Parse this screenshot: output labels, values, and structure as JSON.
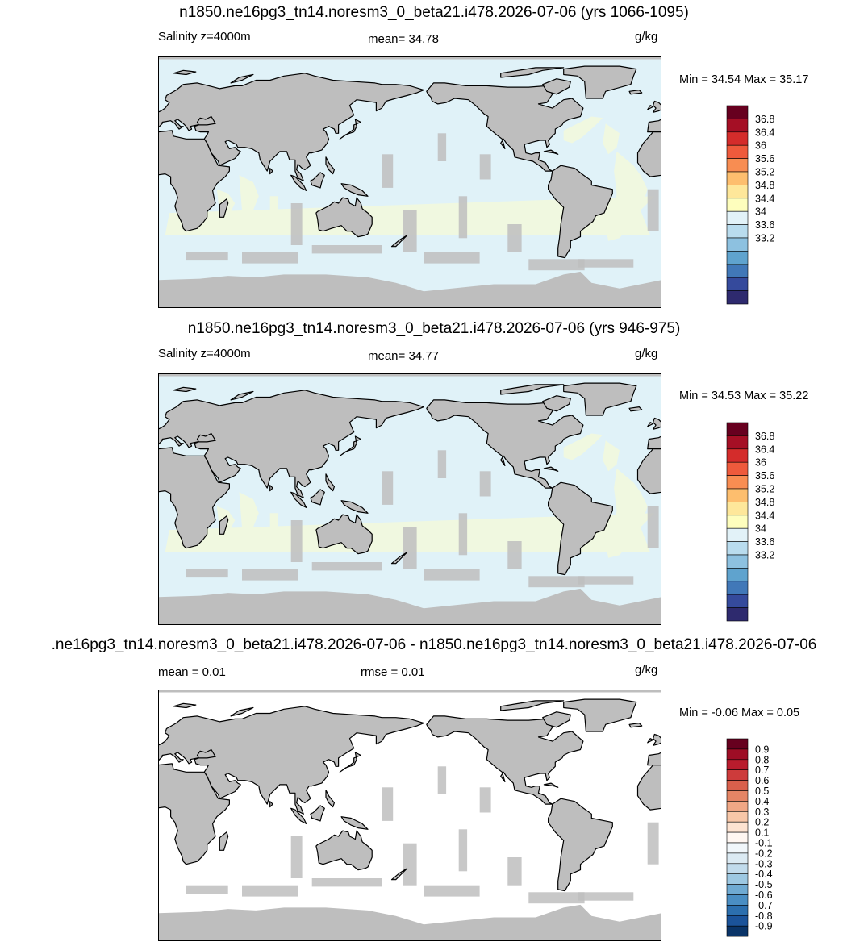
{
  "panels": [
    {
      "title": "n1850.ne16pg3_tn14.noresm3_0_beta21.i478.2026-07-06 (yrs 1066-1095)",
      "left_label": "Salinity z=4000m",
      "center_label": "mean=  34.78",
      "units": "g/kg",
      "minmax": "Min =  34.54 Max =  35.17",
      "ocean_color": "#e0f2f8",
      "saline_color": "#f0f8e0"
    },
    {
      "title": "n1850.ne16pg3_tn14.noresm3_0_beta21.i478.2026-07-06 (yrs 946-975)",
      "left_label": "Salinity z=4000m",
      "center_label": "mean=  34.77",
      "units": "g/kg",
      "minmax": "Min =  34.53 Max =  35.22",
      "ocean_color": "#e0f2f8",
      "saline_color": "#f0f8e0"
    },
    {
      "title": ".ne16pg3_tn14.noresm3_0_beta21.i478.2026-07-06 - n1850.ne16pg3_tn14.noresm3_0_beta21.i478.2026-07-06",
      "left_label": "mean =   0.01",
      "center_label": "rmse =   0.01",
      "units": "g/kg",
      "minmax": "Min =  -0.06 Max =   0.05",
      "ocean_color": "#ffffff",
      "saline_color": "#ffffff"
    }
  ],
  "colorbars": {
    "salinity": {
      "labels": [
        "36.8",
        "36.4",
        "36",
        "35.6",
        "35.2",
        "34.8",
        "34.4",
        "34",
        "33.6",
        "33.2"
      ],
      "colors": [
        "#67001f",
        "#a50f25",
        "#d42c2b",
        "#ee5a3c",
        "#f88d52",
        "#fdbe6e",
        "#fee79a",
        "#fefebd",
        "#e2f2f8",
        "#b9dcee",
        "#8dc1e0",
        "#5fa3ce",
        "#4178b8",
        "#354a9c",
        "#2e2a6e"
      ]
    },
    "difference": {
      "labels": [
        "0.9",
        "0.8",
        "0.7",
        "0.6",
        "0.5",
        "0.4",
        "0.3",
        "0.2",
        "0.1",
        "-0.1",
        "-0.2",
        "-0.3",
        "-0.4",
        "-0.5",
        "-0.6",
        "-0.7",
        "-0.8",
        "-0.9"
      ],
      "colors": [
        "#67001f",
        "#9e0d25",
        "#b91c2d",
        "#cd3b3b",
        "#d9604c",
        "#e58565",
        "#f0a785",
        "#f8c7a8",
        "#fde3d1",
        "#fff7f2",
        "#f1f7fb",
        "#dbeaf3",
        "#c1dbec",
        "#9dc8e2",
        "#6faad2",
        "#4a8ec3",
        "#2c6fae",
        "#1b539a",
        "#0a3468"
      ],
      "title": ""
    }
  },
  "chart_data": [
    {
      "type": "heatmap",
      "title": "n1850.ne16pg3_tn14.noresm3_0_beta21.i478.2026-07-06 (yrs 1066-1095)",
      "variable": "Salinity z=4000m",
      "units": "g/kg",
      "mean": 34.78,
      "min": 34.54,
      "max": 35.17,
      "projection": "cylindrical equidistant, lon 0-360",
      "colorbar_range": [
        33.0,
        37.0
      ],
      "colorbar_step": 0.2
    },
    {
      "type": "heatmap",
      "title": "n1850.ne16pg3_tn14.noresm3_0_beta21.i478.2026-07-06 (yrs 946-975)",
      "variable": "Salinity z=4000m",
      "units": "g/kg",
      "mean": 34.77,
      "min": 34.53,
      "max": 35.22,
      "projection": "cylindrical equidistant, lon 0-360",
      "colorbar_range": [
        33.0,
        37.0
      ],
      "colorbar_step": 0.2
    },
    {
      "type": "heatmap",
      "title": ".ne16pg3_tn14.noresm3_0_beta21.i478.2026-07-06 - n1850.ne16pg3_tn14.noresm3_0_beta21.i478.2026-07-06",
      "units": "g/kg",
      "mean": 0.01,
      "rmse": 0.01,
      "min": -0.06,
      "max": 0.05,
      "projection": "cylindrical equidistant, lon 0-360",
      "colorbar_range": [
        -0.9,
        0.9
      ]
    }
  ]
}
